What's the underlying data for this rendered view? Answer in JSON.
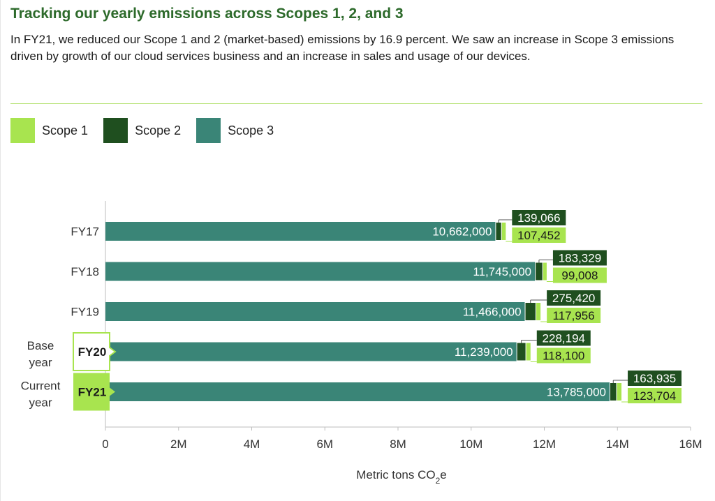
{
  "header": {
    "title": "Tracking our yearly emissions across Scopes 1, 2, and 3",
    "subtitle": "In FY21, we reduced our Scope 1 and 2 (market-based) emissions by 16.9 percent. We saw an increase in Scope 3 emissions driven by growth of our cloud services business and an increase in sales and usage of our devices."
  },
  "colors": {
    "scope1": "#a8e44f",
    "scope2": "#1f4f1f",
    "scope3": "#3a8577",
    "title": "#2d6a2b",
    "divider": "#b9e37a"
  },
  "legend": [
    {
      "label": "Scope 1",
      "color": "#a8e44f"
    },
    {
      "label": "Scope 2",
      "color": "#1f4f1f"
    },
    {
      "label": "Scope 3",
      "color": "#3a8577"
    }
  ],
  "chart_data": {
    "type": "bar",
    "orientation": "horizontal",
    "stacked": true,
    "categories": [
      "FY17",
      "FY18",
      "FY19",
      "FY20",
      "FY21"
    ],
    "category_notes": [
      "",
      "",
      "",
      "Base year",
      "Current year"
    ],
    "highlight": {
      "FY20": "outlined",
      "FY21": "filled"
    },
    "series": [
      {
        "name": "Scope 3",
        "values": [
          10662000,
          11745000,
          11466000,
          11239000,
          13785000
        ],
        "labels": [
          "10,662,000",
          "11,745,000",
          "11,466,000",
          "11,239,000",
          "13,785,000"
        ]
      },
      {
        "name": "Scope 2",
        "values": [
          139066,
          183329,
          275420,
          228194,
          163935
        ],
        "labels": [
          "139,066",
          "183,329",
          "275,420",
          "228,194",
          "163,935"
        ]
      },
      {
        "name": "Scope 1",
        "values": [
          107452,
          99008,
          117956,
          118100,
          123704
        ],
        "labels": [
          "107,452",
          "99,008",
          "117,956",
          "118,100",
          "123,704"
        ]
      }
    ],
    "xlim": [
      0,
      16000000
    ],
    "xticks": [
      0,
      2000000,
      4000000,
      6000000,
      8000000,
      10000000,
      12000000,
      14000000,
      16000000
    ],
    "xtick_labels": [
      "0",
      "2M",
      "4M",
      "6M",
      "8M",
      "10M",
      "12M",
      "14M",
      "16M"
    ],
    "xlabel_main": "Metric tons CO",
    "xlabel_sub": "2",
    "xlabel_tail": "e",
    "legend_position": "top-left",
    "grid": false
  }
}
